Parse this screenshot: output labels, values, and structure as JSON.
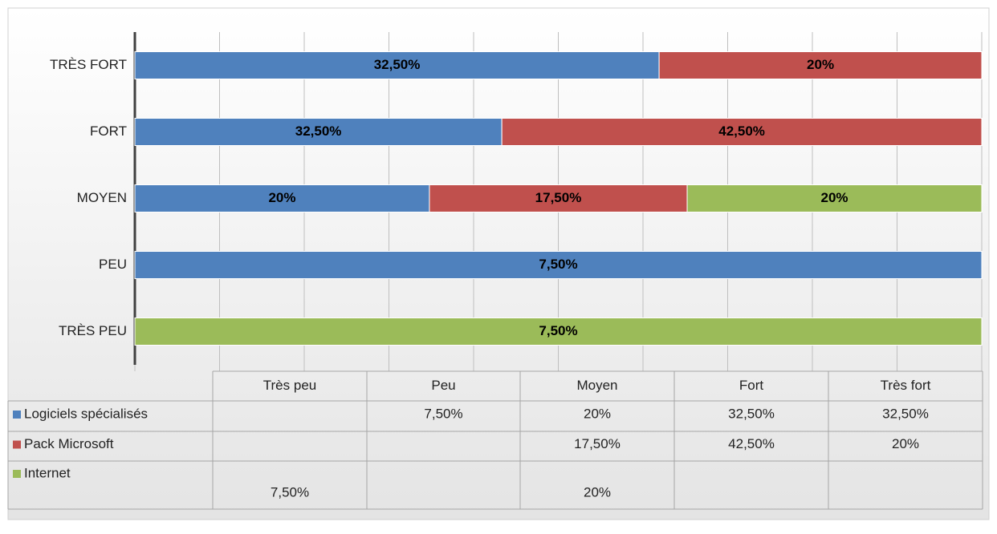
{
  "chart_data": {
    "type": "bar",
    "orientation": "horizontal",
    "stacked": "percent",
    "categories": [
      "Très peu",
      "Peu",
      "Moyen",
      "Fort",
      "Très fort"
    ],
    "axis_labels": [
      "TRÈS PEU",
      "PEU",
      "MOYEN",
      "FORT",
      "TRÈS FORT"
    ],
    "xlim": [
      0,
      100
    ],
    "xticks": [
      0,
      10,
      20,
      30,
      40,
      50,
      60,
      70,
      80,
      90,
      100
    ],
    "grid": true,
    "series": [
      {
        "name": "Logiciels spécialisés",
        "color": "#4f81bd",
        "values": [
          null,
          7.5,
          20,
          32.5,
          32.5
        ],
        "value_labels": [
          null,
          "7,50%",
          "20%",
          "32,50%",
          "32,50%"
        ]
      },
      {
        "name": "Pack Microsoft",
        "color": "#c0504d",
        "values": [
          null,
          null,
          17.5,
          42.5,
          20
        ],
        "value_labels": [
          null,
          null,
          "17,50%",
          "42,50%",
          "20%"
        ]
      },
      {
        "name": "Internet",
        "color": "#9bbb59",
        "values": [
          7.5,
          null,
          20,
          null,
          null
        ],
        "value_labels": [
          "7,50%",
          null,
          "20%",
          null,
          null
        ]
      }
    ]
  }
}
